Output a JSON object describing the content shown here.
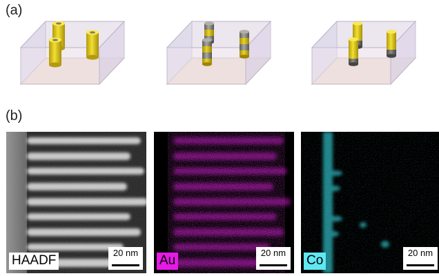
{
  "figure": {
    "panel_a_label": "(a)",
    "panel_b_label": "(b)",
    "schematics": [
      {
        "variant": "solid-gold-cylinders",
        "colors": {
          "gold": "#e6cf1a",
          "core": "#8a7a6a"
        }
      },
      {
        "variant": "gold-cobalt-striped-cylinders",
        "colors": {
          "gold": "#d8c21a",
          "cobalt": "#8a8a82"
        }
      },
      {
        "variant": "gold-topped-cobalt-cylinders",
        "colors": {
          "gold": "#e6cf1a",
          "cobalt": "#7a7a7a"
        }
      }
    ],
    "micrographs": [
      {
        "label": "HAADF",
        "label_bg": "#ffffff",
        "label_color": "#000000",
        "scale": "20 nm",
        "channel_color": "#d9d9d9"
      },
      {
        "label": "Au",
        "label_bg": "#e619e6",
        "label_color": "#000000",
        "scale": "20 nm",
        "channel_color": "#e619e6"
      },
      {
        "label": "Co",
        "label_bg": "#5fe8f2",
        "label_color": "#000000",
        "scale": "20 nm",
        "channel_color": "#35dde6"
      }
    ]
  }
}
